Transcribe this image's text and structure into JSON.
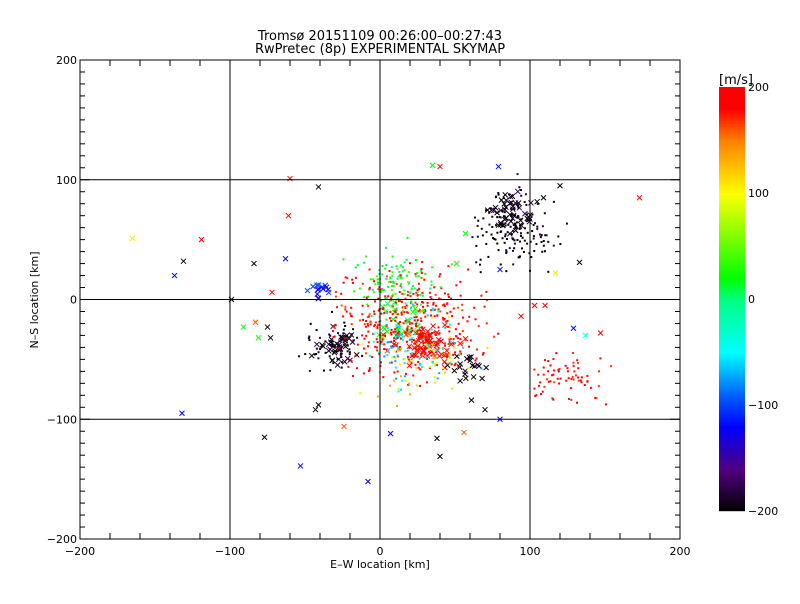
{
  "chart_data": {
    "type": "scatter",
    "title": "Tromsø 20151109 00:26:00–00:27:43",
    "subtitle": "RwPretec (8p) EXPERIMENTAL SKYMAP",
    "xlabel": "E–W location [km]",
    "ylabel": "N–S location [km]",
    "xlim": [
      -200,
      200
    ],
    "ylim": [
      -200,
      200
    ],
    "x_ticks": [
      "−200",
      "−100",
      "0",
      "100",
      "200"
    ],
    "y_ticks": [
      "−200",
      "−100",
      "0",
      "100",
      "200"
    ],
    "x_tick_values": [
      -200,
      -100,
      0,
      100,
      200
    ],
    "y_tick_values": [
      -200,
      -100,
      0,
      100,
      200
    ],
    "grid": true,
    "colorbar": {
      "label": "[m/s]",
      "range": [
        -200,
        200
      ],
      "ticks": [
        "200",
        "100",
        "0",
        "−100",
        "−200"
      ],
      "tick_values": [
        200,
        100,
        0,
        -100,
        -200
      ],
      "stops": [
        [
          -200,
          "#000000"
        ],
        [
          -160,
          "#500080"
        ],
        [
          -120,
          "#0000ff"
        ],
        [
          -90,
          "#0060ff"
        ],
        [
          -50,
          "#00ffff"
        ],
        [
          0,
          "#00ff80"
        ],
        [
          20,
          "#00ff00"
        ],
        [
          70,
          "#a0ff00"
        ],
        [
          100,
          "#ffff00"
        ],
        [
          150,
          "#ff8000"
        ],
        [
          180,
          "#ff0000"
        ],
        [
          200,
          "#ff0000"
        ]
      ]
    },
    "crosses_xy_velocity": [
      [
        -165,
        51,
        110
      ],
      [
        -119,
        50,
        190
      ],
      [
        -131,
        32,
        -200
      ],
      [
        -137,
        20,
        -120
      ],
      [
        -99,
        0,
        -200
      ],
      [
        -132,
        -95,
        -120
      ],
      [
        -60,
        101,
        190
      ],
      [
        -61,
        70,
        190
      ],
      [
        -41,
        94,
        -200
      ],
      [
        -84,
        30,
        -200
      ],
      [
        -63,
        34,
        -120
      ],
      [
        -72,
        6,
        190
      ],
      [
        -91,
        -23,
        20
      ],
      [
        -83,
        -19,
        160
      ],
      [
        -75,
        -23,
        -200
      ],
      [
        -73,
        -32,
        -200
      ],
      [
        -81,
        -32,
        20
      ],
      [
        -77,
        -115,
        -200
      ],
      [
        -53,
        -139,
        -120
      ],
      [
        -8,
        -152,
        -120
      ],
      [
        -24,
        -106,
        160
      ],
      [
        -43,
        -92,
        -200
      ],
      [
        -41,
        -88,
        -200
      ],
      [
        40,
        111,
        190
      ],
      [
        35,
        112,
        20
      ],
      [
        79,
        111,
        -120
      ],
      [
        173,
        85,
        190
      ],
      [
        120,
        95,
        -200
      ],
      [
        109,
        85,
        -200
      ],
      [
        133,
        31,
        -200
      ],
      [
        117,
        22,
        110
      ],
      [
        103,
        -5,
        190
      ],
      [
        110,
        -5,
        190
      ],
      [
        94,
        -14,
        190
      ],
      [
        129,
        -24,
        -120
      ],
      [
        147,
        -28,
        190
      ],
      [
        137,
        -30,
        -50
      ],
      [
        56,
        -111,
        160
      ],
      [
        40,
        -131,
        -200
      ],
      [
        38,
        -116,
        -200
      ],
      [
        7,
        -112,
        -120
      ],
      [
        61,
        -84,
        -200
      ],
      [
        70,
        -92,
        -200
      ],
      [
        80,
        -100,
        -120
      ],
      [
        51,
        30,
        20
      ],
      [
        57,
        55,
        20
      ],
      [
        80,
        25,
        -120
      ]
    ],
    "clusters": [
      {
        "center": [
          -30,
          -38
        ],
        "spread": [
          10,
          12
        ],
        "count": 40,
        "velocity": -200,
        "marker": "cross"
      },
      {
        "center": [
          88,
          72
        ],
        "spread": [
          12,
          12
        ],
        "count": 45,
        "velocity": -200,
        "marker": "cross"
      },
      {
        "center": [
          33,
          -38
        ],
        "spread": [
          14,
          12
        ],
        "count": 70,
        "velocity": 190,
        "marker": "cross"
      },
      {
        "center": [
          -40,
          8
        ],
        "spread": [
          6,
          5
        ],
        "count": 15,
        "velocity": -120,
        "marker": "cross"
      },
      {
        "center": [
          15,
          -20
        ],
        "spread": [
          12,
          12
        ],
        "count": 30,
        "velocity": 20,
        "marker": "cross"
      },
      {
        "center": [
          60,
          -60
        ],
        "spread": [
          10,
          10
        ],
        "count": 20,
        "velocity": -200,
        "marker": "cross"
      },
      {
        "center": [
          20,
          -20
        ],
        "spread": [
          35,
          30
        ],
        "count": 400,
        "velocity": 190,
        "marker": "dot"
      },
      {
        "center": [
          90,
          60
        ],
        "spread": [
          18,
          22
        ],
        "count": 160,
        "velocity": -200,
        "marker": "dot"
      },
      {
        "center": [
          10,
          10
        ],
        "spread": [
          20,
          20
        ],
        "count": 120,
        "velocity": 20,
        "marker": "dot"
      },
      {
        "center": [
          125,
          -65
        ],
        "spread": [
          18,
          15
        ],
        "count": 70,
        "velocity": 190,
        "marker": "dot"
      },
      {
        "center": [
          -30,
          -40
        ],
        "spread": [
          15,
          15
        ],
        "count": 60,
        "velocity": -200,
        "marker": "dot"
      },
      {
        "center": [
          20,
          -40
        ],
        "spread": [
          25,
          25
        ],
        "count": 80,
        "velocity": -50,
        "marker": "dot"
      },
      {
        "center": [
          30,
          -50
        ],
        "spread": [
          25,
          25
        ],
        "count": 60,
        "velocity": 110,
        "marker": "dot"
      }
    ]
  }
}
